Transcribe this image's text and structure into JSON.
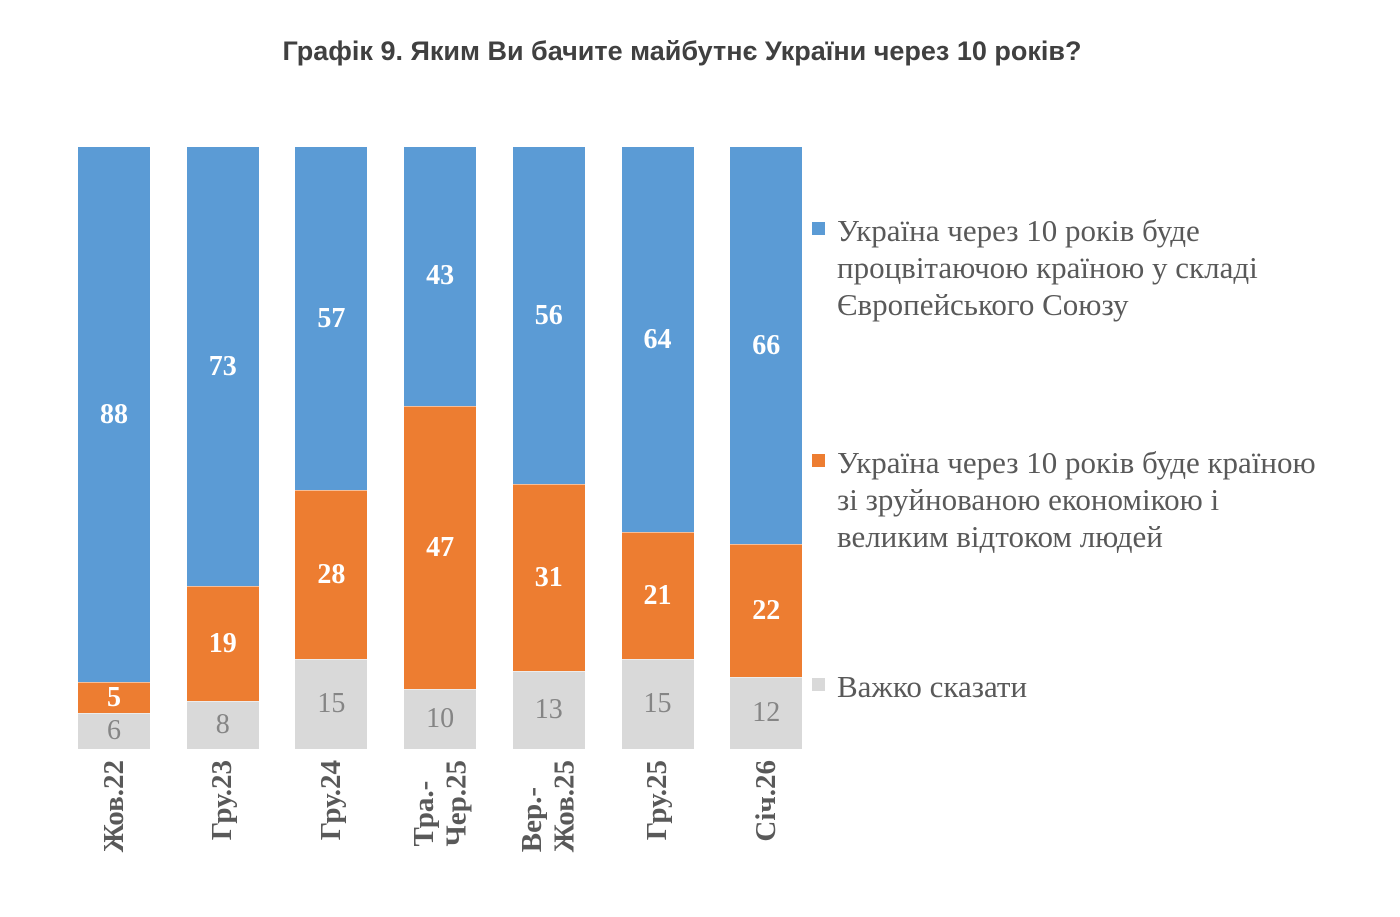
{
  "title": "Графік 9. Яким Ви бачите майбутнє України через 10 років?",
  "chart_data": {
    "type": "bar",
    "subtype": "stacked-100-percent",
    "orientation": "vertical-columns",
    "grid": false,
    "axes_visible": false,
    "legend_position": "right",
    "categories": [
      "Жов.22",
      "Гру.23",
      "Гру.24",
      "Тра.-\nЧер.25",
      "Вер.-\nЖов.25",
      "Гру.25",
      "Січ.26"
    ],
    "series": [
      {
        "name": "Україна через 10 років буде процвітаючою країною у складі Європейського Союзу",
        "color": "#5B9BD5",
        "label_style": "light",
        "values": [
          88,
          73,
          57,
          43,
          56,
          64,
          66
        ]
      },
      {
        "name": "Україна через 10 років буде країною зі зруйнованою економікою і великим відтоком людей",
        "color": "#ED7D31",
        "label_style": "light",
        "values": [
          5,
          19,
          28,
          47,
          31,
          21,
          22
        ]
      },
      {
        "name": "Важко сказати",
        "color": "#D9D9D9",
        "label_style": "muted",
        "values": [
          6,
          8,
          15,
          10,
          13,
          15,
          12
        ]
      }
    ],
    "stack_order": "first-series-on-top",
    "value_label_colors": {
      "light": "#FFFFFF",
      "muted": "#858585"
    },
    "category_label_color": "#595959",
    "legend_text_color": "#595959",
    "title_color": "#404040",
    "background_color": "#FFFFFF"
  }
}
